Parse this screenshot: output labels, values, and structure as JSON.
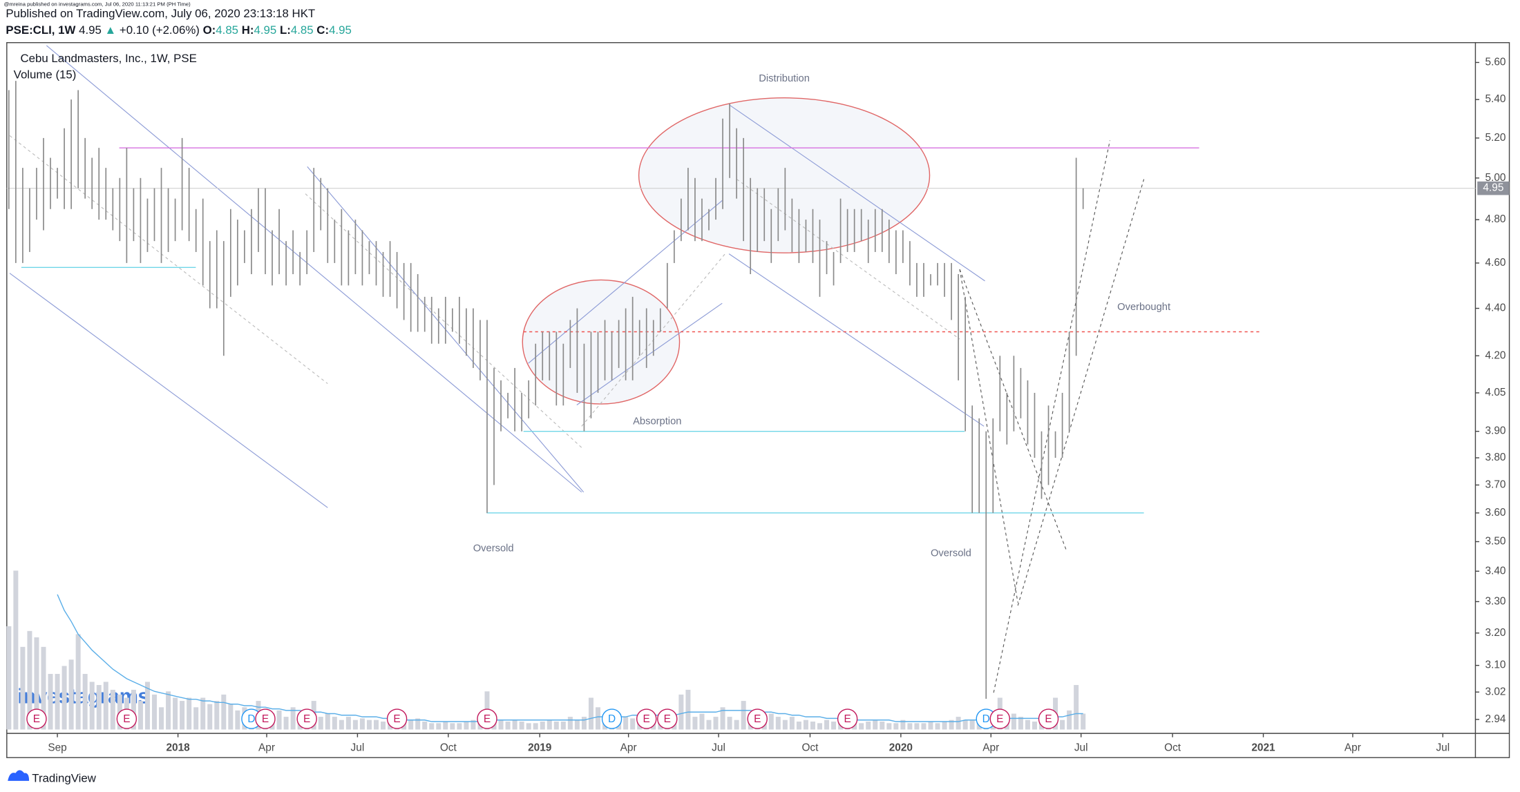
{
  "header": {
    "published_by": "@mreina published on investagrams.com, Jul 06, 2020 11:13:21 PM (PH Time)",
    "published": "Published on TradingView.com, July 06, 2020 23:13:18 HKT",
    "symbol": "PSE:CLI, 1W",
    "last": 4.95,
    "arrow": "▲",
    "change": "+0.10 (+2.06%)",
    "open_label": "O:",
    "open": 4.85,
    "high_label": "H:",
    "high": 4.95,
    "low_label": "L:",
    "low": 4.85,
    "close_label": "C:",
    "close": 4.95
  },
  "branding": {
    "watermark": "investagrams",
    "footer": "TradingView"
  },
  "chart_data": {
    "type": "ohlc",
    "title": "Cebu Landmasters, Inc., 1W, PSE",
    "volume_label": "Volume (15)",
    "log_scale": true,
    "ylim": [
      2.9,
      5.71
    ],
    "yticks": [
      {
        "value": 5.6,
        "label": "5.60"
      },
      {
        "value": 5.4,
        "label": "5.40"
      },
      {
        "value": 5.2,
        "label": "5.20"
      },
      {
        "value": 5.0,
        "label": "5.00"
      },
      {
        "value": 4.8,
        "label": "4.80"
      },
      {
        "value": 4.6,
        "label": "4.60"
      },
      {
        "value": 4.4,
        "label": "4.40"
      },
      {
        "value": 4.2,
        "label": "4.20"
      },
      4.05,
      {
        "value": 3.9,
        "label": "3.90"
      },
      {
        "value": 3.8,
        "label": "3.80"
      },
      {
        "value": 3.7,
        "label": "3.70"
      },
      {
        "value": 3.6,
        "label": "3.60"
      },
      {
        "value": 3.5,
        "label": "3.50"
      },
      {
        "value": 3.4,
        "label": "3.40"
      },
      {
        "value": 3.3,
        "label": "3.30"
      },
      {
        "value": 3.2,
        "label": "3.20"
      },
      {
        "value": 3.1,
        "label": "3.10"
      },
      3.02,
      2.94
    ],
    "xlim": [
      -0.3,
      211.6
    ],
    "xticks": [
      {
        "value": 7,
        "label": "Sep"
      },
      {
        "value": 24.4,
        "label": "2018"
      },
      {
        "value": 37.2,
        "label": "Apr"
      },
      {
        "value": 50.3,
        "label": "Jul"
      },
      {
        "value": 63.4,
        "label": "Oct"
      },
      {
        "value": 76.6,
        "label": "2019"
      },
      {
        "value": 89.4,
        "label": "Apr"
      },
      {
        "value": 102.4,
        "label": "Jul"
      },
      {
        "value": 115.6,
        "label": "Oct"
      },
      {
        "value": 128.7,
        "label": "2020"
      },
      {
        "value": 141.7,
        "label": "Apr"
      },
      {
        "value": 154.7,
        "label": "Jul"
      },
      {
        "value": 167.9,
        "label": "Oct"
      },
      {
        "value": 181,
        "label": "2021"
      },
      {
        "value": 193.9,
        "label": "Apr"
      },
      {
        "value": 206.9,
        "label": "Jul"
      }
    ],
    "bar_color": "#8a8a8a",
    "high": [
      5.45,
      5.5,
      5.05,
      4.95,
      5.05,
      5.2,
      5.1,
      5.05,
      5.25,
      5.4,
      5.45,
      5.2,
      5.1,
      5.15,
      5.05,
      4.95,
      5.0,
      5.15,
      4.95,
      5.0,
      4.9,
      4.95,
      5.05,
      4.95,
      4.9,
      5.2,
      5.05,
      4.85,
      4.9,
      4.7,
      4.75,
      4.7,
      4.85,
      4.8,
      4.75,
      4.85,
      4.95,
      4.95,
      4.75,
      4.85,
      4.7,
      4.75,
      4.65,
      4.75,
      5.05,
      5.0,
      4.95,
      4.8,
      4.85,
      4.75,
      4.8,
      4.75,
      4.7,
      4.7,
      4.65,
      4.7,
      4.65,
      4.6,
      4.6,
      4.55,
      4.45,
      4.45,
      4.4,
      4.45,
      4.4,
      4.45,
      4.4,
      4.4,
      4.35,
      4.35,
      4.15,
      4.1,
      4.05,
      4.15,
      4.05,
      4.1,
      4.25,
      4.3,
      4.3,
      4.3,
      4.25,
      4.35,
      4.4,
      4.25,
      4.3,
      4.3,
      4.35,
      4.3,
      4.35,
      4.4,
      4.45,
      4.35,
      4.4,
      4.35,
      4.4,
      4.6,
      4.75,
      4.9,
      5.05,
      5.0,
      4.9,
      4.85,
      5.0,
      5.3,
      5.38,
      5.25,
      5.2,
      5.0,
      4.95,
      4.95,
      4.85,
      4.95,
      5.05,
      4.9,
      4.85,
      4.8,
      4.85,
      4.8,
      4.7,
      4.65,
      4.9,
      4.85,
      4.85,
      4.85,
      4.8,
      4.85,
      4.85,
      4.8,
      4.75,
      4.75,
      4.7,
      4.6,
      4.6,
      4.55,
      4.6,
      4.6,
      4.6,
      4.55,
      4.45,
      4.0,
      3.95,
      3.9,
      3.95,
      4.2,
      4.05,
      4.2,
      4.15,
      4.1,
      4.05,
      3.9,
      4.0,
      3.9,
      4.05,
      4.3,
      5.1,
      4.95
    ],
    "low": [
      4.85,
      4.6,
      4.6,
      4.65,
      4.8,
      4.75,
      4.85,
      4.9,
      4.85,
      4.85,
      4.95,
      4.9,
      4.85,
      4.8,
      4.8,
      4.75,
      4.7,
      4.6,
      4.7,
      4.6,
      4.65,
      4.7,
      4.6,
      4.65,
      4.7,
      4.75,
      4.7,
      4.65,
      4.5,
      4.4,
      4.4,
      4.2,
      4.45,
      4.5,
      4.6,
      4.55,
      4.65,
      4.55,
      4.5,
      4.55,
      4.5,
      4.55,
      4.5,
      4.55,
      4.65,
      4.75,
      4.6,
      4.6,
      4.5,
      4.5,
      4.55,
      4.5,
      4.55,
      4.5,
      4.45,
      4.45,
      4.4,
      4.35,
      4.3,
      4.3,
      4.3,
      4.25,
      4.25,
      4.25,
      4.3,
      4.25,
      4.2,
      4.15,
      4.1,
      3.6,
      3.7,
      3.9,
      3.95,
      3.9,
      3.9,
      3.95,
      4.0,
      4.1,
      4.1,
      4.0,
      4.0,
      4.15,
      4.05,
      3.9,
      3.95,
      4.05,
      4.1,
      4.1,
      4.15,
      4.1,
      4.1,
      4.2,
      4.15,
      4.2,
      4.3,
      4.4,
      4.6,
      4.7,
      4.75,
      4.7,
      4.7,
      4.75,
      4.8,
      4.85,
      5.0,
      4.9,
      4.7,
      4.55,
      4.65,
      4.7,
      4.6,
      4.7,
      4.75,
      4.65,
      4.6,
      4.65,
      4.6,
      4.45,
      4.55,
      4.5,
      4.6,
      4.65,
      4.65,
      4.7,
      4.6,
      4.65,
      4.65,
      4.6,
      4.55,
      4.6,
      4.5,
      4.45,
      4.45,
      4.5,
      4.5,
      4.45,
      4.35,
      4.1,
      3.9,
      3.6,
      3.6,
      3.0,
      3.6,
      3.9,
      3.85,
      3.9,
      3.95,
      3.85,
      3.8,
      3.65,
      3.7,
      3.8,
      3.8,
      3.9,
      4.2,
      4.85
    ],
    "volume": {
      "color": "#d1d4dc",
      "ma_color": "#5aaee8",
      "values": [
        65,
        100,
        52,
        62,
        58,
        52,
        35,
        35,
        40,
        44,
        60,
        35,
        30,
        28,
        30,
        25,
        22,
        20,
        25,
        18,
        30,
        22,
        14,
        24,
        20,
        18,
        20,
        14,
        20,
        16,
        18,
        22,
        16,
        12,
        14,
        10,
        18,
        12,
        10,
        12,
        8,
        14,
        10,
        10,
        18,
        8,
        10,
        8,
        6,
        8,
        6,
        7,
        6,
        6,
        5,
        8,
        5,
        5,
        6,
        7,
        5,
        4,
        4,
        5,
        4,
        4,
        5,
        6,
        4,
        24,
        10,
        6,
        5,
        6,
        5,
        4,
        4,
        5,
        6,
        5,
        5,
        8,
        6,
        8,
        20,
        14,
        6,
        5,
        10,
        8,
        7,
        8,
        6,
        10,
        8,
        6,
        10,
        22,
        25,
        8,
        10,
        6,
        8,
        14,
        8,
        6,
        18,
        10,
        8,
        6,
        10,
        8,
        6,
        8,
        5,
        6,
        5,
        4,
        6,
        5,
        6,
        5,
        4,
        4,
        5,
        6,
        5,
        4,
        4,
        6,
        4,
        4,
        4,
        5,
        4,
        5,
        6,
        8,
        6,
        6,
        8,
        6,
        8,
        20,
        6,
        10,
        8,
        6,
        5,
        6,
        4,
        20,
        6,
        12,
        28,
        10
      ],
      "ma": [
        null,
        null,
        null,
        null,
        null,
        null,
        null,
        85,
        75,
        68,
        60,
        55,
        50,
        46,
        42,
        38,
        35,
        32,
        30,
        28,
        26,
        24,
        23,
        22,
        21,
        20,
        19,
        19,
        18,
        18,
        17,
        17,
        16,
        16,
        15,
        15,
        14,
        14,
        13,
        13,
        12,
        12,
        12,
        11,
        11,
        11,
        10,
        10,
        9,
        9,
        9,
        8,
        8,
        8,
        7,
        7,
        7,
        6,
        6,
        6,
        6,
        5,
        5,
        5,
        5,
        5,
        5,
        5,
        5,
        6,
        6,
        6,
        6,
        6,
        6,
        6,
        6,
        6,
        6,
        6,
        6,
        6,
        6,
        6,
        7,
        8,
        8,
        8,
        8,
        8,
        9,
        9,
        9,
        9,
        9,
        9,
        9,
        10,
        11,
        11,
        11,
        11,
        11,
        12,
        12,
        12,
        12,
        12,
        11,
        11,
        11,
        10,
        10,
        9,
        9,
        8,
        8,
        8,
        7,
        7,
        7,
        7,
        6,
        6,
        6,
        6,
        6,
        6,
        5,
        5,
        5,
        5,
        5,
        5,
        5,
        5,
        5,
        5,
        6,
        6,
        6,
        6,
        6,
        7,
        7,
        7,
        7,
        7,
        7,
        7,
        7,
        8,
        8,
        9,
        10,
        10
      ]
    },
    "last_price": 4.95,
    "levels": [
      {
        "value": 5.15,
        "color": "#d670e0",
        "dashed": false
      },
      {
        "value": 4.3,
        "color": "#ef5350",
        "dashed": true
      },
      {
        "value": 4.58,
        "color": "#6fd6e8",
        "dashed": false
      },
      {
        "value": 3.9,
        "color": "#6fd6e8",
        "dashed": false
      },
      {
        "value": 3.6,
        "color": "#6fd6e8",
        "dashed": false
      }
    ],
    "annotations": [
      "Distribution",
      "Absorption",
      "Oversold",
      "Oversold",
      "Overbought"
    ],
    "events": [
      {
        "label": "E",
        "index": 4,
        "color": "#c2185b"
      },
      {
        "label": "E",
        "index": 17,
        "color": "#c2185b"
      },
      {
        "label": "D",
        "index": 35,
        "color": "#2196f3"
      },
      {
        "label": "E",
        "index": 37,
        "color": "#c2185b"
      },
      {
        "label": "E",
        "index": 43,
        "color": "#c2185b"
      },
      {
        "label": "E",
        "index": 56,
        "color": "#c2185b"
      },
      {
        "label": "E",
        "index": 69,
        "color": "#c2185b"
      },
      {
        "label": "D",
        "index": 87,
        "color": "#2196f3"
      },
      {
        "label": "E",
        "index": 92,
        "color": "#c2185b"
      },
      {
        "label": "E",
        "index": 95,
        "color": "#c2185b"
      },
      {
        "label": "E",
        "index": 108,
        "color": "#c2185b"
      },
      {
        "label": "E",
        "index": 121,
        "color": "#c2185b"
      },
      {
        "label": "D",
        "index": 141,
        "color": "#2196f3"
      },
      {
        "label": "E",
        "index": 143,
        "color": "#c2185b"
      },
      {
        "label": "E",
        "index": 150,
        "color": "#c2185b"
      }
    ]
  }
}
